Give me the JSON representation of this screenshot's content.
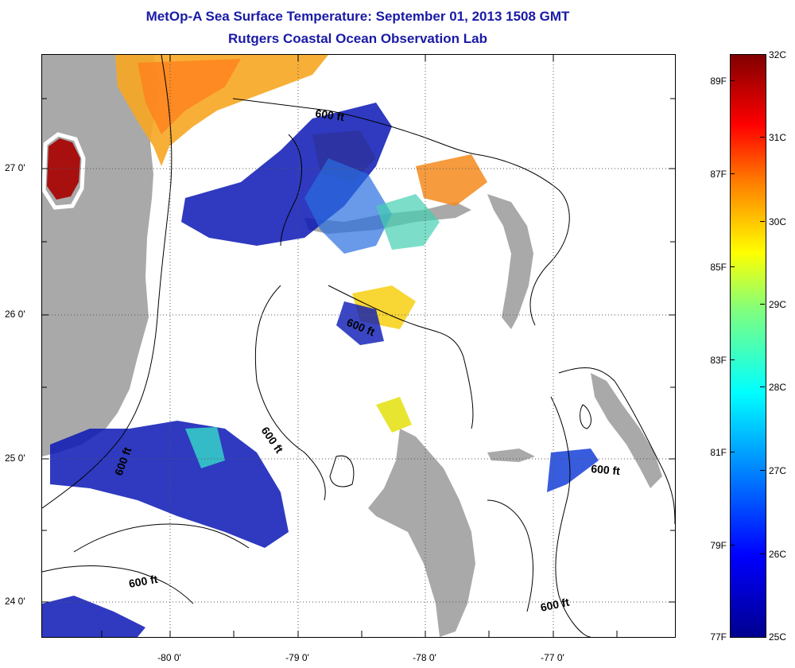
{
  "title": "MetOp-A Sea Surface Temperature:  September 01, 2013 1508 GMT",
  "subtitle": "Rutgers Coastal Ocean Observation Lab",
  "map": {
    "lat_labels": [
      "27 0'",
      "26 0'",
      "25 0'",
      "24 0'"
    ],
    "lon_labels": [
      "-80 0'",
      "-79 0'",
      "-78 0'",
      "-77 0'"
    ],
    "contour_labels": [
      "600 ft",
      "600 ft",
      "600 ft",
      "600 ft",
      "600 ft",
      "600 ft",
      "600 ft"
    ],
    "land_color": "#a9a9a9",
    "grid": "dotted"
  },
  "colorbar": {
    "celsius": [
      "32C",
      "31C",
      "30C",
      "29C",
      "28C",
      "27C",
      "26C",
      "25C"
    ],
    "fahrenheit": [
      "89F",
      "87F",
      "85F",
      "83F",
      "81F",
      "79F",
      "77F"
    ],
    "colors": [
      "#00008f",
      "#0000ff",
      "#007fff",
      "#00ffff",
      "#7fff7f",
      "#ffff00",
      "#ff7f00",
      "#ff0000",
      "#800000"
    ]
  }
}
